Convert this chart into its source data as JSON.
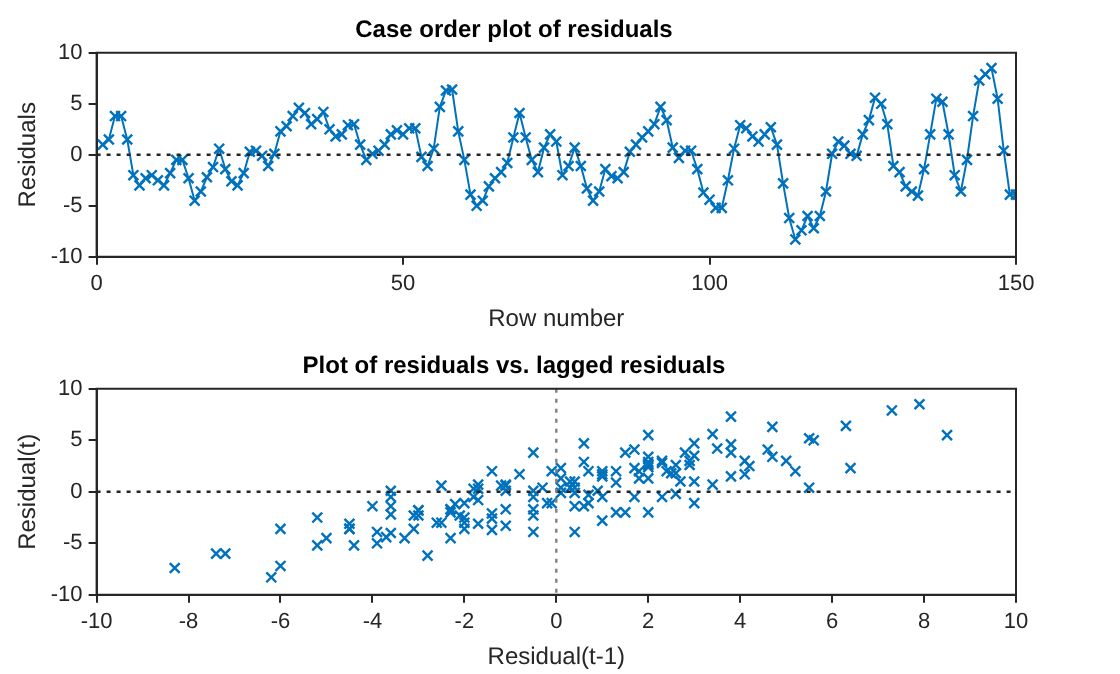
{
  "chart_data": [
    {
      "type": "line",
      "title": "Case order plot of residuals",
      "xlabel": "Row number",
      "ylabel": "Residuals",
      "marker": "cross",
      "line_style": "solid",
      "grid": false,
      "legend": false,
      "x": [
        1,
        2,
        3,
        4,
        5,
        6,
        7,
        8,
        9,
        10,
        11,
        12,
        13,
        14,
        15,
        16,
        17,
        18,
        19,
        20,
        21,
        22,
        23,
        24,
        25,
        26,
        27,
        28,
        29,
        30,
        31,
        32,
        33,
        34,
        35,
        36,
        37,
        38,
        39,
        40,
        41,
        42,
        43,
        44,
        45,
        46,
        47,
        48,
        49,
        50,
        51,
        52,
        53,
        54,
        55,
        56,
        57,
        58,
        59,
        60,
        61,
        62,
        63,
        64,
        65,
        66,
        67,
        68,
        69,
        70,
        71,
        72,
        73,
        74,
        75,
        76,
        77,
        78,
        79,
        80,
        81,
        82,
        83,
        84,
        85,
        86,
        87,
        88,
        89,
        90,
        91,
        92,
        93,
        94,
        95,
        96,
        97,
        98,
        99,
        100,
        101,
        102,
        103,
        104,
        105,
        106,
        107,
        108,
        109,
        110,
        111,
        112,
        113,
        114,
        115,
        116,
        117,
        118,
        119,
        120,
        121,
        122,
        123,
        124,
        125,
        126,
        127,
        128,
        129,
        130,
        131,
        132,
        133,
        134,
        135,
        136,
        137,
        138,
        139,
        140,
        141,
        142,
        143,
        144,
        145,
        146,
        147,
        148,
        149,
        150
      ],
      "series": [
        {
          "color": "#0072bd",
          "values": [
            1,
            1.5,
            3.8,
            3.8,
            1.5,
            -2,
            -3,
            -2.3,
            -2,
            -2.5,
            -3,
            -1.8,
            -0.5,
            -0.5,
            -2.3,
            -4.5,
            -3.6,
            -2.2,
            -1.2,
            0.6,
            -1.4,
            -2.6,
            -3,
            -1.8,
            0.3,
            0.4,
            -0.1,
            -1.1,
            0.1,
            2.3,
            2.8,
            3.8,
            4.6,
            4.1,
            3.0,
            3.5,
            4.2,
            2.5,
            1.8,
            2.0,
            2.9,
            3.0,
            1.0,
            -0.5,
            0.1,
            0.4,
            1.0,
            2.0,
            2.4,
            2.0,
            2.6,
            2.6,
            -0.2,
            -1.1,
            0.6,
            4.7,
            6.3,
            6.4,
            2.3,
            -0.5,
            -3.9,
            -5,
            -4.5,
            -3.1,
            -2.3,
            -1.7,
            -0.8,
            1.7,
            4.1,
            1.7,
            -0.5,
            -1.7,
            0.7,
            2.0,
            1.3,
            -2.0,
            -1.1,
            0.7,
            -1.1,
            -3.3,
            -4.5,
            -3.6,
            -1.4,
            -2.1,
            -2.3,
            -1.7,
            0.3,
            1.0,
            1.7,
            2.3,
            3.0,
            4.7,
            3.4,
            0.7,
            -0.3,
            0.4,
            0.4,
            -1.4,
            -3.7,
            -4.4,
            -5.2,
            -5.2,
            -2.5,
            0.6,
            2.9,
            2.6,
            1.8,
            1.3,
            2.0,
            2.7,
            1.0,
            -2.8,
            -6.2,
            -8.3,
            -7.4,
            -6.0,
            -7.2,
            -6.0,
            -3.6,
            0.1,
            1.3,
            0.9,
            0.1,
            -0.1,
            2.0,
            3.4,
            5.6,
            5.0,
            3.0,
            -1.1,
            -1.7,
            -3.1,
            -3.6,
            -4.0,
            -1.4,
            2.0,
            5.5,
            5.2,
            2.0,
            -2.0,
            -3.6,
            -0.5,
            3.8,
            7.3,
            7.9,
            8.5,
            5.5,
            0.4,
            -3.9,
            -3.9
          ]
        }
      ],
      "xlim": [
        0,
        150
      ],
      "xticks": [
        0,
        50,
        100,
        150
      ],
      "ylim": [
        -10,
        10
      ],
      "yticks": [
        -10,
        -5,
        0,
        5,
        10
      ],
      "ref_lines": [
        {
          "axis": "y",
          "value": 0,
          "color": "#262626",
          "line_style": "dotted"
        }
      ]
    },
    {
      "type": "scatter",
      "title": "Plot of residuals vs. lagged residuals",
      "xlabel": "Residual(t-1)",
      "ylabel": "Residual(t)",
      "marker": "cross",
      "grid": false,
      "legend": false,
      "series": [
        {
          "color": "#0072bd",
          "x": [
            1,
            1.5,
            3.8,
            3.8,
            1.5,
            -2,
            -3,
            -2.3,
            -2,
            -2.5,
            -3,
            -1.8,
            -0.5,
            -0.5,
            -2.3,
            -4.5,
            -3.6,
            -2.2,
            -1.2,
            0.6,
            -1.4,
            -2.6,
            -3,
            -1.8,
            0.3,
            0.4,
            -0.1,
            -1.1,
            0.1,
            2.3,
            2.8,
            3.8,
            4.6,
            4.1,
            3.0,
            3.5,
            4.2,
            2.5,
            1.8,
            2.0,
            2.9,
            3.0,
            1.0,
            -0.5,
            0.1,
            0.4,
            1.0,
            2.0,
            2.4,
            2.0,
            2.6,
            2.6,
            -0.2,
            -1.1,
            0.6,
            4.7,
            6.3,
            6.4,
            2.3,
            -0.5,
            -3.9,
            -5,
            -4.5,
            -3.1,
            -2.3,
            -1.7,
            -0.8,
            1.7,
            4.1,
            1.7,
            -0.5,
            -1.7,
            0.7,
            2.0,
            1.3,
            -2.0,
            -1.1,
            0.7,
            -1.1,
            -3.3,
            -4.5,
            -3.6,
            -1.4,
            -2.1,
            -2.3,
            -1.7,
            0.3,
            1.0,
            1.7,
            2.3,
            3.0,
            4.7,
            3.4,
            0.7,
            -0.3,
            0.4,
            0.4,
            -1.4,
            -3.7,
            -4.4,
            -5.2,
            -5.2,
            -2.5,
            0.6,
            2.9,
            2.6,
            1.8,
            1.3,
            2.0,
            2.7,
            1.0,
            -2.8,
            -6.2,
            -8.3,
            -7.4,
            -6.0,
            -7.2,
            -6.0,
            -3.6,
            0.1,
            1.3,
            0.9,
            0.1,
            -0.1,
            2.0,
            3.4,
            5.6,
            5.0,
            3.0,
            -1.1,
            -1.7,
            -3.1,
            -3.6,
            -4.0,
            -1.4,
            2.0,
            5.5,
            5.2,
            2.0,
            -2.0,
            -3.6,
            -0.5,
            3.8,
            7.3,
            7.9,
            8.5,
            5.5,
            0.4,
            -3.9
          ],
          "values": [
            1.5,
            3.8,
            3.8,
            1.5,
            -2,
            -3,
            -2.3,
            -2,
            -2.5,
            -3,
            -1.8,
            -0.5,
            -0.5,
            -2.3,
            -4.5,
            -3.6,
            -2.2,
            -1.2,
            0.6,
            -1.4,
            -2.6,
            -3,
            -1.8,
            0.3,
            0.4,
            -0.1,
            -1.1,
            0.1,
            2.3,
            2.8,
            3.8,
            4.6,
            4.1,
            3.0,
            3.5,
            4.2,
            2.5,
            1.8,
            2.0,
            2.9,
            3.0,
            1.0,
            -0.5,
            0.1,
            0.4,
            1.0,
            2.0,
            2.4,
            2.0,
            2.6,
            2.6,
            -0.2,
            -1.1,
            0.6,
            4.7,
            6.3,
            6.4,
            2.3,
            -0.5,
            -3.9,
            -5,
            -4.5,
            -3.1,
            -2.3,
            -1.7,
            -0.8,
            1.7,
            4.1,
            1.7,
            -0.5,
            -1.7,
            0.7,
            2.0,
            1.3,
            -2.0,
            -1.1,
            0.7,
            -1.1,
            -3.3,
            -4.5,
            -3.6,
            -1.4,
            -2.1,
            -2.3,
            -1.7,
            0.3,
            1.0,
            1.7,
            2.3,
            3.0,
            4.7,
            3.4,
            0.7,
            -0.3,
            0.4,
            0.4,
            -1.4,
            -3.7,
            -4.4,
            -5.2,
            -5.2,
            -2.5,
            0.6,
            2.9,
            2.6,
            1.8,
            1.3,
            2.0,
            2.7,
            1.0,
            -2.8,
            -6.2,
            -8.3,
            -7.4,
            -6.0,
            -7.2,
            -6.0,
            -3.6,
            0.1,
            1.3,
            0.9,
            0.1,
            -0.1,
            2.0,
            3.4,
            5.6,
            5.0,
            3.0,
            -1.1,
            -1.7,
            -3.1,
            -3.6,
            -4.0,
            -1.4,
            2.0,
            5.5,
            5.2,
            2.0,
            -2.0,
            -3.6,
            -0.5,
            3.8,
            7.3,
            7.9,
            8.5,
            5.5,
            0.4,
            -3.9,
            -3.9
          ]
        }
      ],
      "xlim": [
        -10,
        10
      ],
      "xticks": [
        -10,
        -8,
        -6,
        -4,
        -2,
        0,
        2,
        4,
        6,
        8,
        10
      ],
      "ylim": [
        -10,
        10
      ],
      "yticks": [
        -10,
        -5,
        0,
        5,
        10
      ],
      "ref_lines": [
        {
          "axis": "y",
          "value": 0,
          "color": "#262626",
          "line_style": "dotted"
        },
        {
          "axis": "x",
          "value": 0,
          "color": "#808080",
          "line_style": "dotted"
        }
      ]
    }
  ]
}
